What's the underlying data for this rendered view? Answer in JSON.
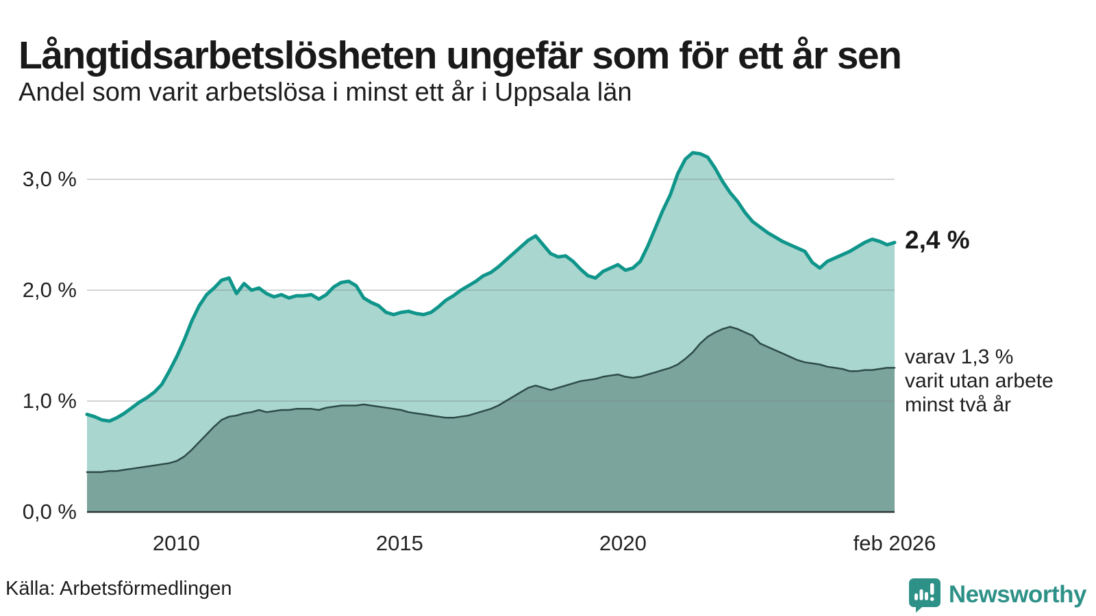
{
  "header": {
    "title": "Långtidsarbetslösheten ungefär som för ett år sen",
    "subtitle": "Andel som varit arbetslösa i minst ett år i Uppsala län"
  },
  "annotations": {
    "end_value": "2,4 %",
    "note": "varav 1,3 %\nvarit utan arbete\nminst två år"
  },
  "source": "Källa: Arbetsförmedlingen",
  "logo": {
    "text": "Newsworthy",
    "icon": "newsworthy-speech-bubble-chart-icon",
    "color": "#2e9187"
  },
  "colors": {
    "background": "#ffffff",
    "text": "#191919",
    "gridline": "#d9dcdf",
    "axis_line": "#2e3538",
    "line_primary": "#0f958a",
    "fill_primary": "#a9d6cf",
    "line_secondary": "#2d4b46",
    "fill_secondary": "#7ba49d"
  },
  "chart_data": {
    "type": "area",
    "title": "Långtidsarbetslösheten ungefär som för ett år sen",
    "subtitle": "Andel som varit arbetslösa i minst ett år i Uppsala län",
    "x_start": 2008.0,
    "x_end": 2026.083,
    "x_unit": "year (monthly series, Jan 2008 – Feb 2026)",
    "y_unit": "percent of workforce",
    "ylim": [
      0,
      3.3
    ],
    "grid": true,
    "legend_position": "none (direct labels at right line ends)",
    "x_ticks": [
      {
        "value": 2010,
        "label": "2010"
      },
      {
        "value": 2015,
        "label": "2015"
      },
      {
        "value": 2020,
        "label": "2020"
      },
      {
        "value": 2026.083,
        "label": "feb 2026"
      }
    ],
    "y_ticks": [
      {
        "value": 3.0,
        "label": "3,0 %"
      },
      {
        "value": 2.0,
        "label": "2,0 %"
      },
      {
        "value": 1.0,
        "label": "1,0 %"
      },
      {
        "value": 0.0,
        "label": "0,0 %"
      }
    ],
    "series": [
      {
        "name": "Arbetslösa minst ett år",
        "color": "#0f958a",
        "fill": "#a9d6cf",
        "stroke_width": 5,
        "end_label": "2,4 %",
        "values": [
          0.88,
          0.86,
          0.83,
          0.82,
          0.85,
          0.89,
          0.94,
          0.99,
          1.03,
          1.08,
          1.15,
          1.27,
          1.4,
          1.55,
          1.72,
          1.86,
          1.96,
          2.02,
          2.09,
          2.11,
          1.97,
          2.06,
          2.0,
          2.02,
          1.97,
          1.94,
          1.96,
          1.93,
          1.95,
          1.95,
          1.96,
          1.92,
          1.96,
          2.03,
          2.07,
          2.08,
          2.04,
          1.93,
          1.89,
          1.86,
          1.8,
          1.78,
          1.8,
          1.81,
          1.79,
          1.78,
          1.8,
          1.85,
          1.91,
          1.95,
          2.0,
          2.04,
          2.08,
          2.13,
          2.16,
          2.21,
          2.27,
          2.33,
          2.39,
          2.45,
          2.49,
          2.41,
          2.33,
          2.3,
          2.31,
          2.26,
          2.19,
          2.13,
          2.11,
          2.17,
          2.2,
          2.23,
          2.18,
          2.2,
          2.26,
          2.4,
          2.56,
          2.72,
          2.86,
          3.05,
          3.18,
          3.24,
          3.23,
          3.2,
          3.1,
          2.98,
          2.88,
          2.8,
          2.7,
          2.62,
          2.57,
          2.52,
          2.48,
          2.44,
          2.41,
          2.38,
          2.35,
          2.25,
          2.2,
          2.26,
          2.29,
          2.32,
          2.35,
          2.39,
          2.43,
          2.46,
          2.44,
          2.41,
          2.43
        ]
      },
      {
        "name": "varav utan arbete minst två år",
        "color": "#2d4b46",
        "fill": "#7ba49d",
        "stroke_width": 2.5,
        "end_label": "varav 1,3 % varit utan arbete minst två år",
        "values": [
          0.36,
          0.36,
          0.36,
          0.37,
          0.37,
          0.38,
          0.39,
          0.4,
          0.41,
          0.42,
          0.43,
          0.44,
          0.46,
          0.5,
          0.56,
          0.63,
          0.7,
          0.77,
          0.83,
          0.86,
          0.87,
          0.89,
          0.9,
          0.92,
          0.9,
          0.91,
          0.92,
          0.92,
          0.93,
          0.93,
          0.93,
          0.92,
          0.94,
          0.95,
          0.96,
          0.96,
          0.96,
          0.97,
          0.96,
          0.95,
          0.94,
          0.93,
          0.92,
          0.9,
          0.89,
          0.88,
          0.87,
          0.86,
          0.85,
          0.85,
          0.86,
          0.87,
          0.89,
          0.91,
          0.93,
          0.96,
          1.0,
          1.04,
          1.08,
          1.12,
          1.14,
          1.12,
          1.1,
          1.12,
          1.14,
          1.16,
          1.18,
          1.19,
          1.2,
          1.22,
          1.23,
          1.24,
          1.22,
          1.21,
          1.22,
          1.24,
          1.26,
          1.28,
          1.3,
          1.33,
          1.38,
          1.44,
          1.52,
          1.58,
          1.62,
          1.65,
          1.67,
          1.65,
          1.62,
          1.59,
          1.52,
          1.49,
          1.46,
          1.43,
          1.4,
          1.37,
          1.35,
          1.34,
          1.33,
          1.31,
          1.3,
          1.29,
          1.27,
          1.27,
          1.28,
          1.28,
          1.29,
          1.3,
          1.3
        ]
      }
    ]
  }
}
